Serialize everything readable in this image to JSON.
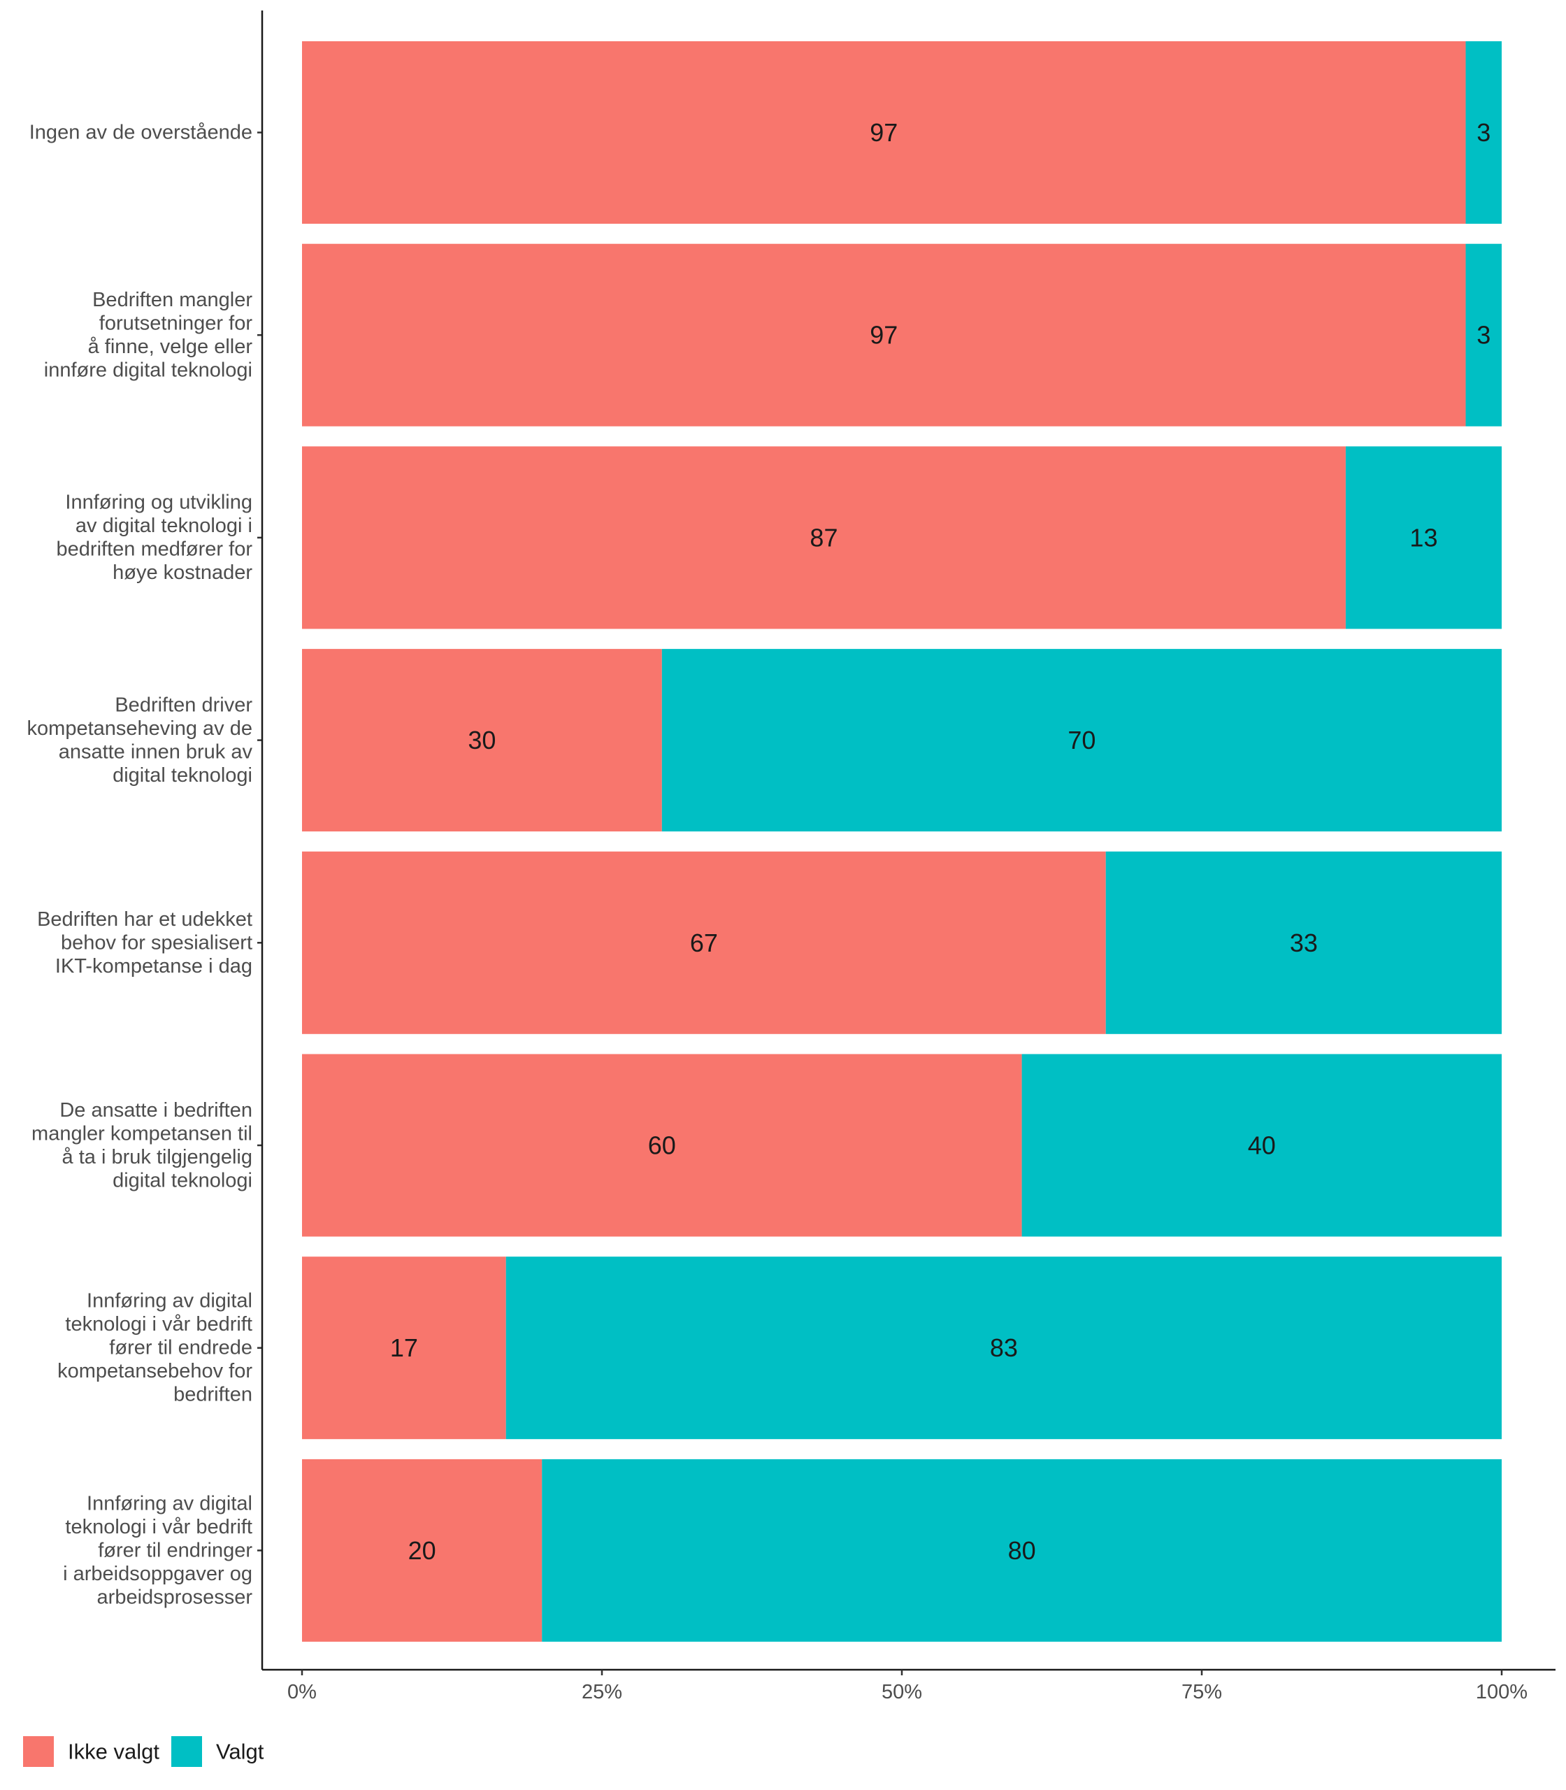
{
  "chart_data": {
    "type": "bar",
    "orientation": "horizontal",
    "stacked": true,
    "percent": true,
    "title": "",
    "xlabel": "",
    "ylabel": "",
    "xlim": [
      0,
      100
    ],
    "x_ticks": [
      "0%",
      "25%",
      "50%",
      "75%",
      "100%"
    ],
    "grid": false,
    "legend_position": "bottom-left",
    "categories": [
      [
        "Ingen av de overstående"
      ],
      [
        "Bedriften mangler",
        "forutsetninger for",
        "å finne, velge eller",
        "innføre digital teknologi"
      ],
      [
        "Innføring og utvikling",
        "av digital teknologi i",
        "bedriften medfører for",
        "høye kostnader"
      ],
      [
        "Bedriften driver",
        "kompetanseheving av de",
        "ansatte innen bruk av",
        "digital teknologi"
      ],
      [
        "Bedriften har et udekket",
        "behov for spesialisert",
        "IKT-kompetanse i dag"
      ],
      [
        "De ansatte i bedriften",
        "mangler kompetansen til",
        "å ta i bruk tilgjengelig",
        "digital teknologi"
      ],
      [
        "Innføring av digital",
        "teknologi i vår bedrift",
        "fører til endrede",
        "kompetansebehov for",
        "bedriften"
      ],
      [
        "Innføring av digital",
        "teknologi i vår bedrift",
        "fører til endringer",
        "i arbeidsoppgaver og",
        "arbeidsprosesser"
      ]
    ],
    "series": [
      {
        "name": "Ikke valgt",
        "color": "#F8766D",
        "values": [
          97,
          97,
          87,
          30,
          67,
          60,
          17,
          20
        ]
      },
      {
        "name": "Valgt",
        "color": "#00BFC4",
        "values": [
          3,
          3,
          13,
          70,
          33,
          40,
          83,
          80
        ]
      }
    ]
  }
}
